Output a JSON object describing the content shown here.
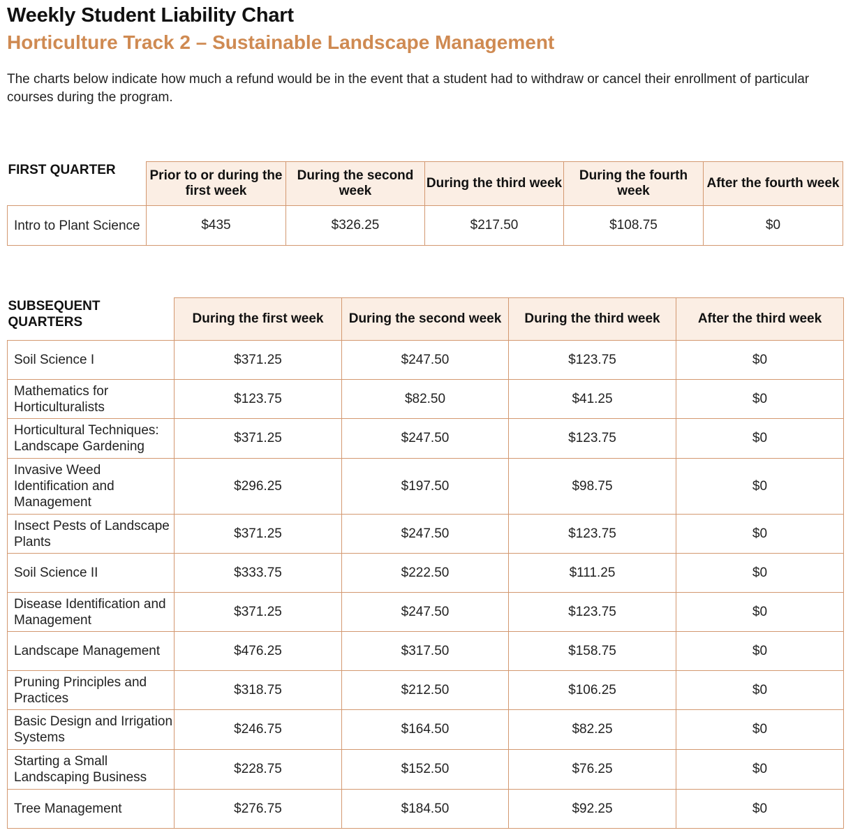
{
  "header": {
    "title": "Weekly Student Liability Chart",
    "subtitle": "Horticulture Track 2 – Sustainable Landscape Management",
    "intro": "The charts below indicate how much a refund would be in the event that a student had to withdraw or cancel their enrollment of particular courses during the program."
  },
  "first_quarter": {
    "label": "FIRST QUARTER",
    "columns": [
      "Prior to or during the first week",
      "During the second week",
      "During the third week",
      "During the fourth week",
      "After the fourth week"
    ],
    "rows": [
      {
        "course": "Intro to Plant Science",
        "values": [
          "$435",
          "$326.25",
          "$217.50",
          "$108.75",
          "$0"
        ]
      }
    ]
  },
  "subsequent_quarters": {
    "label": "SUBSEQUENT QUARTERS",
    "columns": [
      "During the first week",
      "During the second week",
      "During the third week",
      "After the third week"
    ],
    "rows": [
      {
        "course": "Soil Science I",
        "values": [
          "$371.25",
          "$247.50",
          "$123.75",
          "$0"
        ]
      },
      {
        "course": "Mathematics for Horticulturalists",
        "values": [
          "$123.75",
          "$82.50",
          "$41.25",
          "$0"
        ]
      },
      {
        "course": "Horticultural Techniques: Landscape Gardening",
        "values": [
          "$371.25",
          "$247.50",
          "$123.75",
          "$0"
        ]
      },
      {
        "course": "Invasive Weed Identification and Management",
        "values": [
          "$296.25",
          "$197.50",
          "$98.75",
          "$0"
        ]
      },
      {
        "course": "Insect Pests of Landscape Plants",
        "values": [
          "$371.25",
          "$247.50",
          "$123.75",
          "$0"
        ]
      },
      {
        "course": "Soil Science II",
        "values": [
          "$333.75",
          "$222.50",
          "$111.25",
          "$0"
        ]
      },
      {
        "course": "Disease Identification and Management",
        "values": [
          "$371.25",
          "$247.50",
          "$123.75",
          "$0"
        ]
      },
      {
        "course": "Landscape Management",
        "values": [
          "$476.25",
          "$317.50",
          "$158.75",
          "$0"
        ]
      },
      {
        "course": "Pruning Principles and Practices",
        "values": [
          "$318.75",
          "$212.50",
          "$106.25",
          "$0"
        ]
      },
      {
        "course": "Basic Design and Irrigation Systems",
        "values": [
          "$246.75",
          "$164.50",
          "$82.25",
          "$0"
        ]
      },
      {
        "course": "Starting a Small Landscaping Business",
        "values": [
          "$228.75",
          "$152.50",
          "$76.25",
          "$0"
        ]
      },
      {
        "course": "Tree Management",
        "values": [
          "$276.75",
          "$184.50",
          "$92.25",
          "$0"
        ]
      }
    ]
  }
}
